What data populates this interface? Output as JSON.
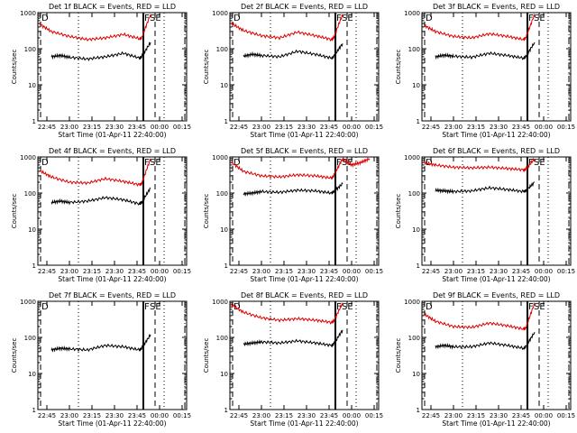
{
  "chart_data": [
    {
      "type": "line",
      "title": "Det 1f BLACK = Events, RED = LLD",
      "xlabel": "Start Time (01-Apr-11 22:40:00)",
      "ylabel": "Counts/sec",
      "y_scale": "log",
      "ylim": [
        1,
        1000
      ],
      "x_ticks": [
        "22:45",
        "23:00",
        "23:15",
        "23:30",
        "23:45",
        "00:00",
        "00:15"
      ],
      "y_ticks": [
        "1",
        "10",
        "100",
        "1000"
      ],
      "markers": [
        "D",
        "F",
        "SE"
      ],
      "series": [
        {
          "color": "#000000",
          "x": [
            22.8,
            22.9,
            23.0,
            23.2,
            23.4,
            23.6,
            23.78,
            23.8,
            23.9
          ],
          "values": [
            60,
            65,
            58,
            52,
            60,
            75,
            55,
            60,
            150
          ]
        },
        {
          "color": "#dd0000",
          "x": [
            22.67,
            22.8,
            23.0,
            23.2,
            23.4,
            23.6,
            23.78,
            23.8,
            23.9
          ],
          "values": [
            480,
            300,
            220,
            180,
            200,
            250,
            190,
            200,
            900
          ]
        }
      ]
    },
    {
      "type": "line",
      "title": "Det 2f BLACK = Events, RED = LLD",
      "xlabel": "Start Time (01-Apr-11 22:40:00)",
      "ylabel": "Counts/sec",
      "y_scale": "log",
      "ylim": [
        1,
        1000
      ],
      "x_ticks": [
        "22:45",
        "23:00",
        "23:15",
        "23:30",
        "23:45",
        "00:00",
        "00:15"
      ],
      "y_ticks": [
        "1",
        "10",
        "100",
        "1000"
      ],
      "markers": [
        "D",
        "F",
        "SE"
      ],
      "series": [
        {
          "color": "#000000",
          "x": [
            22.8,
            22.9,
            23.0,
            23.2,
            23.4,
            23.6,
            23.78,
            23.8,
            23.9
          ],
          "values": [
            62,
            70,
            65,
            60,
            85,
            70,
            55,
            60,
            140
          ]
        },
        {
          "color": "#dd0000",
          "x": [
            22.67,
            22.8,
            23.0,
            23.2,
            23.4,
            23.6,
            23.78,
            23.8,
            23.9
          ],
          "values": [
            500,
            320,
            230,
            200,
            290,
            230,
            180,
            200,
            900
          ]
        }
      ]
    },
    {
      "type": "line",
      "title": "Det 3f BLACK = Events, RED = LLD",
      "xlabel": "Start Time (01-Apr-11 22:40:00)",
      "ylabel": "Counts/sec",
      "y_scale": "log",
      "ylim": [
        1,
        1000
      ],
      "x_ticks": [
        "22:45",
        "23:00",
        "23:15",
        "23:30",
        "23:45",
        "00:00",
        "00:15"
      ],
      "y_ticks": [
        "1",
        "10",
        "100",
        "1000"
      ],
      "markers": [
        "D",
        "F",
        "SE"
      ],
      "series": [
        {
          "color": "#000000",
          "x": [
            22.8,
            22.9,
            23.0,
            23.2,
            23.4,
            23.6,
            23.78,
            23.8,
            23.9
          ],
          "values": [
            60,
            66,
            62,
            58,
            75,
            65,
            55,
            60,
            150
          ]
        },
        {
          "color": "#dd0000",
          "x": [
            22.67,
            22.8,
            23.0,
            23.2,
            23.4,
            23.6,
            23.78,
            23.8,
            23.9
          ],
          "values": [
            450,
            300,
            220,
            200,
            260,
            220,
            180,
            200,
            900
          ]
        }
      ]
    },
    {
      "type": "line",
      "title": "Det 4f BLACK = Events, RED = LLD",
      "xlabel": "Start Time (01-Apr-11 22:40:00)",
      "ylabel": "Counts/sec",
      "y_scale": "log",
      "ylim": [
        1,
        1000
      ],
      "x_ticks": [
        "22:45",
        "23:00",
        "23:15",
        "23:30",
        "23:45",
        "00:00",
        "00:15"
      ],
      "y_ticks": [
        "1",
        "10",
        "100",
        "1000"
      ],
      "markers": [
        "D",
        "F",
        "SE"
      ],
      "series": [
        {
          "color": "#000000",
          "x": [
            22.8,
            22.9,
            23.0,
            23.2,
            23.4,
            23.6,
            23.78,
            23.8,
            23.9
          ],
          "values": [
            55,
            60,
            55,
            60,
            75,
            65,
            50,
            55,
            140
          ]
        },
        {
          "color": "#dd0000",
          "x": [
            22.67,
            22.8,
            23.0,
            23.2,
            23.4,
            23.6,
            23.78,
            23.8,
            23.9
          ],
          "values": [
            420,
            280,
            200,
            190,
            250,
            210,
            170,
            180,
            900
          ]
        }
      ]
    },
    {
      "type": "line",
      "title": "Det 5f BLACK = Events, RED = LLD",
      "xlabel": "Start Time (01-Apr-11 22:40:00)",
      "ylabel": "Counts/sec",
      "y_scale": "log",
      "ylim": [
        1,
        1000
      ],
      "x_ticks": [
        "22:45",
        "23:00",
        "23:15",
        "23:30",
        "23:45",
        "00:00",
        "00:15"
      ],
      "y_ticks": [
        "1",
        "10",
        "100",
        "1000"
      ],
      "markers": [
        "D",
        "F",
        "SE"
      ],
      "series": [
        {
          "color": "#000000",
          "x": [
            22.8,
            22.9,
            23.0,
            23.2,
            23.4,
            23.6,
            23.78,
            23.8,
            23.9
          ],
          "values": [
            95,
            100,
            110,
            105,
            120,
            115,
            100,
            110,
            180
          ]
        },
        {
          "color": "#dd0000",
          "x": [
            22.67,
            22.8,
            23.0,
            23.2,
            23.4,
            23.6,
            23.78,
            23.8,
            23.9,
            24.0,
            24.1,
            24.2
          ],
          "values": [
            700,
            400,
            300,
            280,
            320,
            300,
            260,
            300,
            900,
            600,
            700,
            900
          ]
        }
      ]
    },
    {
      "type": "line",
      "title": "Det 6f BLACK = Events, RED = LLD",
      "xlabel": "Start Time (01-Apr-11 22:40:00)",
      "ylabel": "Counts/sec",
      "y_scale": "log",
      "ylim": [
        1,
        1000
      ],
      "x_ticks": [
        "22:45",
        "23:00",
        "23:15",
        "23:30",
        "23:45",
        "00:00",
        "00:15"
      ],
      "y_ticks": [
        "1",
        "10",
        "100",
        "1000"
      ],
      "markers": [
        "D",
        "F",
        "SE"
      ],
      "series": [
        {
          "color": "#000000",
          "x": [
            22.8,
            22.9,
            23.0,
            23.2,
            23.4,
            23.6,
            23.78,
            23.8,
            23.9
          ],
          "values": [
            120,
            115,
            110,
            115,
            140,
            125,
            110,
            115,
            200
          ]
        },
        {
          "color": "#dd0000",
          "x": [
            22.67,
            22.8,
            23.0,
            23.2,
            23.4,
            23.6,
            23.78,
            23.8,
            23.9
          ],
          "values": [
            700,
            600,
            520,
            500,
            520,
            480,
            440,
            450,
            900
          ]
        }
      ]
    },
    {
      "type": "line",
      "title": "Det 7f BLACK = Events, RED = LLD",
      "xlabel": "Start Time (01-Apr-11 22:40:00)",
      "ylabel": "Counts/sec",
      "y_scale": "log",
      "ylim": [
        1,
        1000
      ],
      "x_ticks": [
        "22:45",
        "23:00",
        "23:15",
        "23:30",
        "23:45",
        "00:00",
        "00:15"
      ],
      "y_ticks": [
        "1",
        "10",
        "100",
        "1000"
      ],
      "markers": [
        "D",
        "F",
        "SE"
      ],
      "series": [
        {
          "color": "#000000",
          "x": [
            22.8,
            22.9,
            23.0,
            23.2,
            23.4,
            23.6,
            23.78,
            23.8,
            23.9
          ],
          "values": [
            45,
            50,
            48,
            45,
            60,
            55,
            45,
            50,
            120
          ]
        }
      ]
    },
    {
      "type": "line",
      "title": "Det 8f BLACK = Events, RED = LLD",
      "xlabel": "Start Time (01-Apr-11 22:40:00)",
      "ylabel": "Counts/sec",
      "y_scale": "log",
      "ylim": [
        1,
        1000
      ],
      "x_ticks": [
        "22:45",
        "23:00",
        "23:15",
        "23:30",
        "23:45",
        "00:00",
        "00:15"
      ],
      "y_ticks": [
        "1",
        "10",
        "100",
        "1000"
      ],
      "markers": [
        "D",
        "F",
        "SE"
      ],
      "series": [
        {
          "color": "#000000",
          "x": [
            22.8,
            22.9,
            23.0,
            23.2,
            23.4,
            23.6,
            23.78,
            23.8,
            23.9
          ],
          "values": [
            65,
            70,
            75,
            70,
            80,
            70,
            60,
            65,
            160
          ]
        },
        {
          "color": "#dd0000",
          "x": [
            22.67,
            22.8,
            23.0,
            23.2,
            23.4,
            23.6,
            23.78,
            23.8,
            23.9
          ],
          "values": [
            800,
            500,
            350,
            300,
            330,
            300,
            260,
            280,
            900
          ]
        }
      ]
    },
    {
      "type": "line",
      "title": "Det 9f BLACK = Events, RED = LLD",
      "xlabel": "Start Time (01-Apr-11 22:40:00)",
      "ylabel": "Counts/sec",
      "y_scale": "log",
      "ylim": [
        1,
        1000
      ],
      "x_ticks": [
        "22:45",
        "23:00",
        "23:15",
        "23:30",
        "23:45",
        "00:00",
        "00:15"
      ],
      "y_ticks": [
        "1",
        "10",
        "100",
        "1000"
      ],
      "markers": [
        "D",
        "F",
        "SE"
      ],
      "series": [
        {
          "color": "#000000",
          "x": [
            22.8,
            22.9,
            23.0,
            23.2,
            23.4,
            23.6,
            23.78,
            23.8,
            23.9
          ],
          "values": [
            55,
            60,
            55,
            55,
            70,
            60,
            50,
            55,
            140
          ]
        },
        {
          "color": "#dd0000",
          "x": [
            22.67,
            22.8,
            23.0,
            23.2,
            23.4,
            23.6,
            23.78,
            23.8,
            23.9
          ],
          "values": [
            450,
            280,
            200,
            190,
            250,
            210,
            170,
            180,
            900
          ]
        }
      ]
    }
  ]
}
